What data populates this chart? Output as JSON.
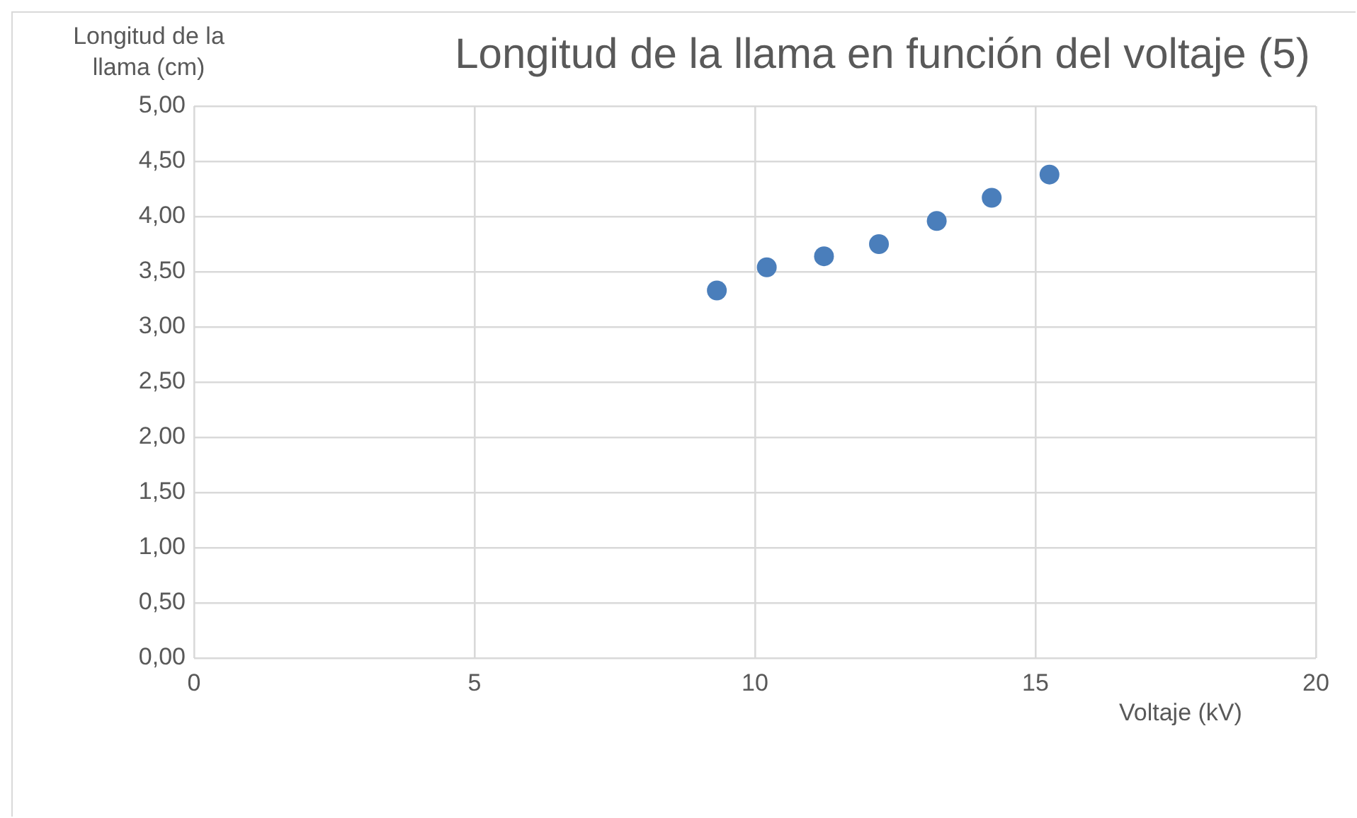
{
  "chart_data": {
    "type": "scatter",
    "title": "Longitud de la llama en función del voltaje (5)",
    "xlabel": "Voltaje (kV)",
    "ylabel": "Longitud de la llama (cm)",
    "x": [
      9.32,
      10.21,
      11.23,
      12.21,
      13.24,
      14.22,
      15.25
    ],
    "series": [
      {
        "color": "#4a7ebb",
        "values": [
          3.33,
          3.54,
          3.64,
          3.75,
          3.96,
          4.17,
          4.38
        ]
      }
    ],
    "xlim": [
      0,
      20
    ],
    "xticks": [
      0,
      5,
      10,
      15,
      20
    ],
    "ylim": [
      0,
      5
    ],
    "yticks": [
      {
        "value": 0,
        "label": "0,00"
      },
      {
        "value": 0.5,
        "label": "0,50"
      },
      {
        "value": 1,
        "label": "1,00"
      },
      {
        "value": 1.5,
        "label": "1,50"
      },
      {
        "value": 2,
        "label": "2,00"
      },
      {
        "value": 2.5,
        "label": "2,50"
      },
      {
        "value": 3,
        "label": "3,00"
      },
      {
        "value": 3.5,
        "label": "3,50"
      },
      {
        "value": 4,
        "label": "4,00"
      },
      {
        "value": 4.5,
        "label": "4,50"
      },
      {
        "value": 5,
        "label": "5,00"
      }
    ],
    "grid": true,
    "legend": false,
    "marker": "circle"
  }
}
